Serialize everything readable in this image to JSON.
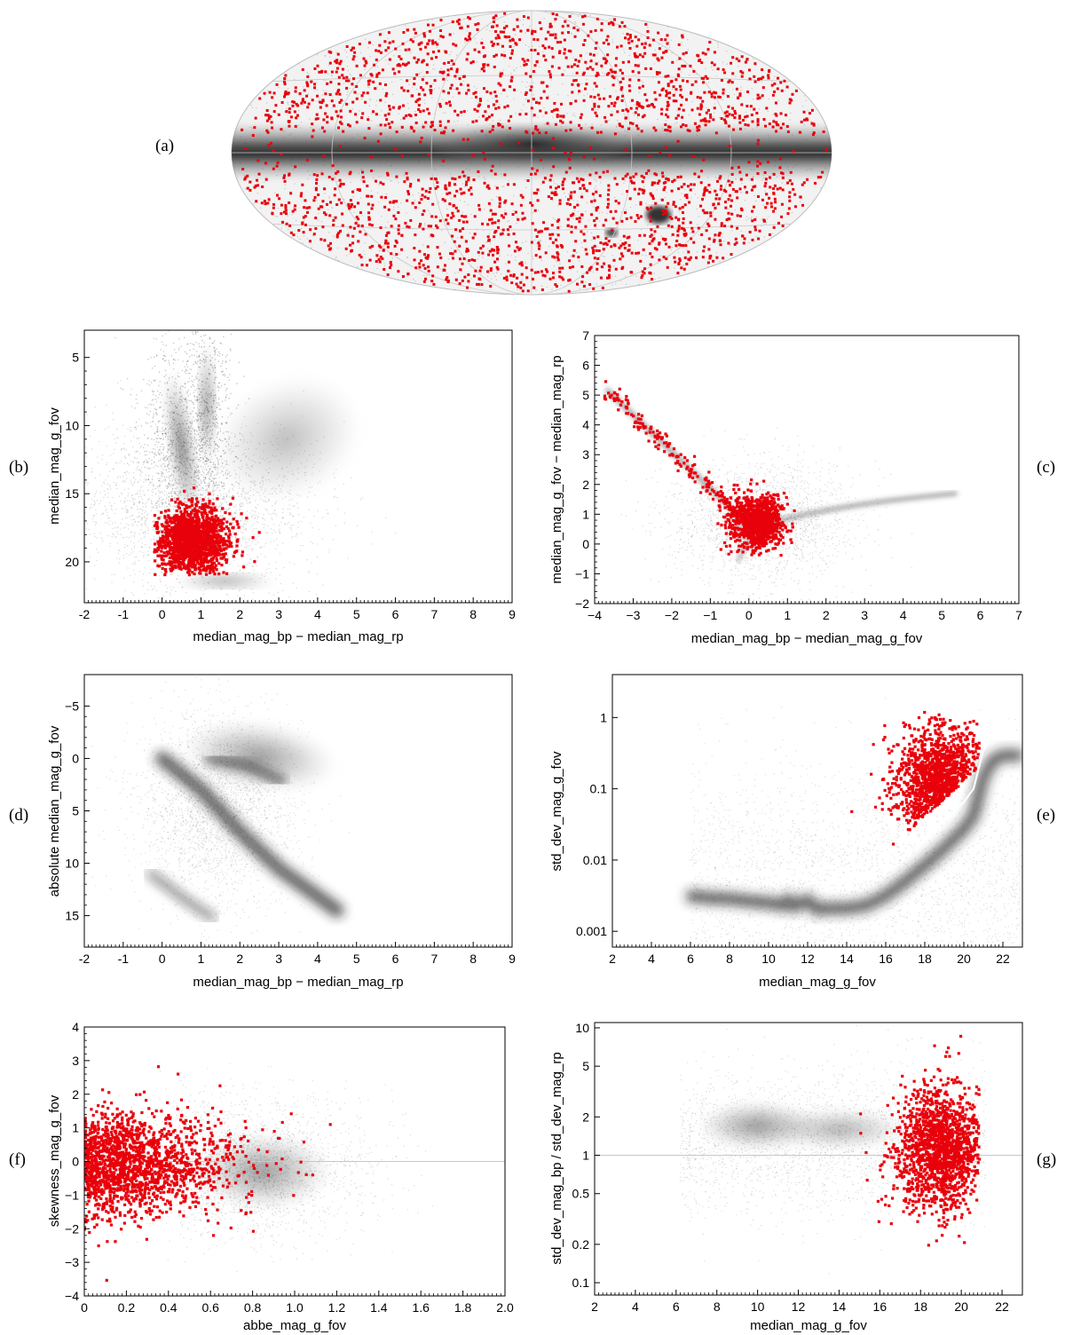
{
  "colors": {
    "highlight": "#e8000b",
    "background_density": "#333333",
    "reference_line": "#c8c8c8",
    "median_curve": "#ffffff"
  },
  "chart_data": [
    {
      "id": "a",
      "tag": "(a)",
      "type": "scatter",
      "projection": "all-sky ellipse (galactic coordinates)",
      "background": "grey density of all sources, dense band along the galactic plane",
      "highlight": {
        "color": "#e8000b",
        "points": "~3000 sources spread uniformly over the sky"
      }
    },
    {
      "id": "b",
      "tag": "(b)",
      "type": "scatter",
      "xlabel": "median_mag_bp − median_mag_rp",
      "ylabel": "median_mag_g_fov",
      "xlim": [
        -2,
        9
      ],
      "ylim": [
        23,
        3
      ],
      "y_inverted": true,
      "xticks": [
        "-2",
        "-1",
        "0",
        "1",
        "2",
        "3",
        "4",
        "5",
        "6",
        "7",
        "8",
        "9"
      ],
      "yticks": [
        "5",
        "10",
        "15",
        "20"
      ],
      "highlight_cluster": {
        "x_center": 0.8,
        "y_center": 18.5,
        "x_range": [
          0,
          3.8
        ],
        "y_range": [
          14.5,
          21
        ]
      }
    },
    {
      "id": "c",
      "tag": "(c)",
      "type": "scatter",
      "xlabel": "median_mag_bp − median_mag_g_fov",
      "ylabel": "median_mag_g_fov − median_mag_rp",
      "xlim": [
        -4,
        7
      ],
      "ylim": [
        -2,
        7
      ],
      "xticks": [
        "−4",
        "−3",
        "−2",
        "−1",
        "0",
        "1",
        "2",
        "3",
        "4",
        "5",
        "6",
        "7"
      ],
      "yticks": [
        "−2",
        "−1",
        "0",
        "1",
        "2",
        "3",
        "4",
        "5",
        "6",
        "7"
      ],
      "highlight_cluster": {
        "x_center": 0.2,
        "y_center": 0.6,
        "x_range": [
          -3.8,
          1.2
        ],
        "y_range": [
          -0.3,
          5.2
        ]
      }
    },
    {
      "id": "d",
      "tag": "(d)",
      "type": "scatter",
      "xlabel": "median_mag_bp − median_mag_rp",
      "ylabel": "absolute median_mag_g_fov",
      "xlim": [
        -2,
        9
      ],
      "ylim": [
        18,
        -8
      ],
      "y_inverted": true,
      "xticks": [
        "-2",
        "-1",
        "0",
        "1",
        "2",
        "3",
        "4",
        "5",
        "6",
        "7",
        "8",
        "9"
      ],
      "yticks": [
        "−5",
        "0",
        "5",
        "10",
        "15"
      ]
    },
    {
      "id": "e",
      "tag": "(e)",
      "type": "scatter",
      "xlabel": "median_mag_g_fov",
      "ylabel": "std_dev_mag_g_fov",
      "xlim": [
        2,
        23
      ],
      "ylim": [
        0.0006,
        4
      ],
      "yscale": "log",
      "xticks": [
        "2",
        "4",
        "6",
        "8",
        "10",
        "12",
        "14",
        "16",
        "18",
        "20",
        "22"
      ],
      "yticks": [
        "0.001",
        "0.01",
        "0.1",
        "1"
      ],
      "median_curve": {
        "x": [
          5.8,
          7,
          8,
          9,
          10,
          10.7,
          11,
          11.3,
          12,
          12.5,
          13,
          14,
          15,
          16,
          17,
          18,
          19,
          20,
          20.5,
          21,
          21.5,
          22,
          23
        ],
        "y": [
          0.0075,
          0.007,
          0.0068,
          0.0063,
          0.006,
          0.0055,
          0.0065,
          0.0053,
          0.0065,
          0.0048,
          0.005,
          0.005,
          0.0055,
          0.0075,
          0.012,
          0.02,
          0.035,
          0.065,
          0.1,
          0.35,
          0.6,
          0.7,
          0.7
        ]
      },
      "highlight_cluster": {
        "x_range": [
          14,
          21
        ],
        "y_range": [
          0.015,
          1.4
        ]
      }
    },
    {
      "id": "f",
      "tag": "(f)",
      "type": "scatter",
      "xlabel": "abbe_mag_g_fov",
      "ylabel": "skewness_mag_g_fov",
      "xlim": [
        0,
        2
      ],
      "ylim": [
        -4,
        4
      ],
      "xticks": [
        "0",
        "0.2",
        "0.4",
        "0.6",
        "0.8",
        "1.0",
        "1.2",
        "1.4",
        "1.6",
        "1.8",
        "2.0"
      ],
      "yticks": [
        "−4",
        "−3",
        "−2",
        "−1",
        "0",
        "1",
        "2",
        "3",
        "4"
      ],
      "reference_line_y": 0
    },
    {
      "id": "g",
      "tag": "(g)",
      "type": "scatter",
      "xlabel": "median_mag_g_fov",
      "ylabel": "std_dev_mag_bp / std_dev_mag_rp",
      "xlim": [
        2,
        23
      ],
      "ylim": [
        0.08,
        11
      ],
      "yscale": "log",
      "xticks": [
        "2",
        "4",
        "6",
        "8",
        "10",
        "12",
        "14",
        "16",
        "18",
        "20",
        "22"
      ],
      "yticks": [
        "0.1",
        "0.2",
        "0.5",
        "1",
        "2",
        "5",
        "10"
      ],
      "reference_line_y": 1
    }
  ]
}
